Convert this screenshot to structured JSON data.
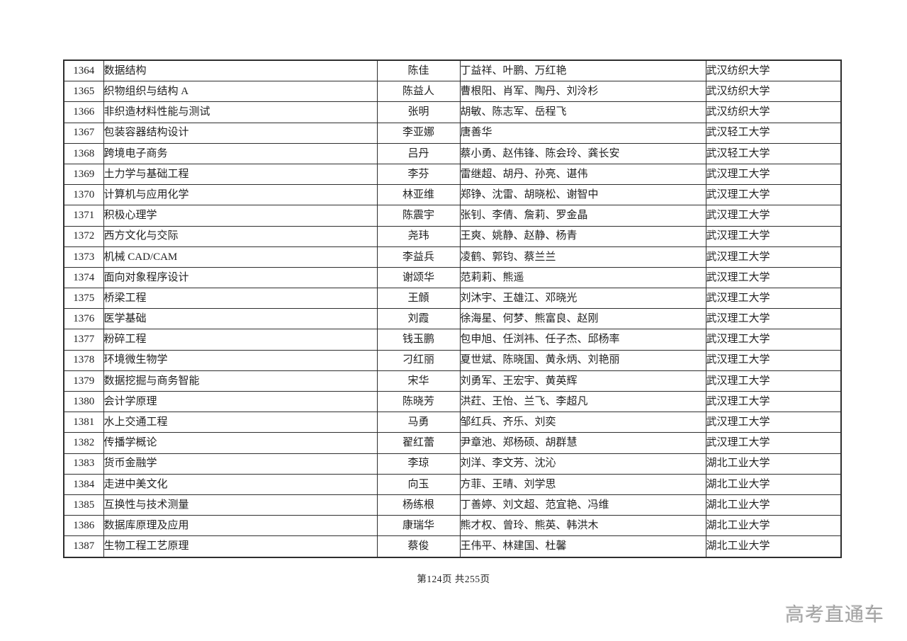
{
  "footer": {
    "text": "第124页 共255页"
  },
  "watermark": {
    "text": "高考直通车"
  },
  "table": {
    "rows": [
      {
        "no": "1364",
        "course": "数据结构",
        "leader": "陈佳",
        "members": "丁益祥、叶鹏、万红艳",
        "university": "武汉纺织大学"
      },
      {
        "no": "1365",
        "course": "织物组织与结构 A",
        "leader": "陈益人",
        "members": "曹根阳、肖军、陶丹、刘泠杉",
        "university": "武汉纺织大学"
      },
      {
        "no": "1366",
        "course": "非织造材料性能与测试",
        "leader": "张明",
        "members": "胡敏、陈志军、岳程飞",
        "university": "武汉纺织大学"
      },
      {
        "no": "1367",
        "course": "包装容器结构设计",
        "leader": "李亚娜",
        "members": "唐善华",
        "university": "武汉轻工大学"
      },
      {
        "no": "1368",
        "course": "跨境电子商务",
        "leader": "吕丹",
        "members": "蔡小勇、赵伟锋、陈会玲、龚长安",
        "university": "武汉轻工大学"
      },
      {
        "no": "1369",
        "course": "土力学与基础工程",
        "leader": "李芬",
        "members": "雷继超、胡丹、孙亮、谌伟",
        "university": "武汉理工大学"
      },
      {
        "no": "1370",
        "course": "计算机与应用化学",
        "leader": "林亚维",
        "members": "郑铮、沈雷、胡晓松、谢智中",
        "university": "武汉理工大学"
      },
      {
        "no": "1371",
        "course": "积极心理学",
        "leader": "陈震宇",
        "members": "张钊、李倩、詹莉、罗金晶",
        "university": "武汉理工大学"
      },
      {
        "no": "1372",
        "course": "西方文化与交际",
        "leader": "尧玮",
        "members": "王爽、姚静、赵静、杨青",
        "university": "武汉理工大学"
      },
      {
        "no": "1373",
        "course": "机械 CAD/CAM",
        "leader": "李益兵",
        "members": "凌鹤、郭钧、蔡兰兰",
        "university": "武汉理工大学"
      },
      {
        "no": "1374",
        "course": "面向对象程序设计",
        "leader": "谢颂华",
        "members": "范莉莉、熊遥",
        "university": "武汉理工大学"
      },
      {
        "no": "1375",
        "course": "桥梁工程",
        "leader": "王頠",
        "members": "刘沐宇、王雄江、邓晓光",
        "university": "武汉理工大学"
      },
      {
        "no": "1376",
        "course": "医学基础",
        "leader": "刘霞",
        "members": "徐海星、何梦、熊富良、赵刚",
        "university": "武汉理工大学"
      },
      {
        "no": "1377",
        "course": "粉碎工程",
        "leader": "钱玉鹏",
        "members": "包申旭、任浏祎、任子杰、邱杨率",
        "university": "武汉理工大学"
      },
      {
        "no": "1378",
        "course": "环境微生物学",
        "leader": "刁红丽",
        "members": "夏世斌、陈晓国、黄永炳、刘艳丽",
        "university": "武汉理工大学"
      },
      {
        "no": "1379",
        "course": "数据挖掘与商务智能",
        "leader": "宋华",
        "members": "刘勇军、王宏宇、黄英辉",
        "university": "武汉理工大学"
      },
      {
        "no": "1380",
        "course": "会计学原理",
        "leader": "陈晓芳",
        "members": "洪荭、王怡、兰飞、李超凡",
        "university": "武汉理工大学"
      },
      {
        "no": "1381",
        "course": "水上交通工程",
        "leader": "马勇",
        "members": "邹红兵、齐乐、刘奕",
        "university": "武汉理工大学"
      },
      {
        "no": "1382",
        "course": "传播学概论",
        "leader": "翟红蕾",
        "members": "尹章池、郑杨硕、胡群慧",
        "university": "武汉理工大学"
      },
      {
        "no": "1383",
        "course": "货币金融学",
        "leader": "李琼",
        "members": "刘洋、李文芳、沈沁",
        "university": "湖北工业大学"
      },
      {
        "no": "1384",
        "course": "走进中美文化",
        "leader": "向玉",
        "members": "方菲、王晴、刘学思",
        "university": "湖北工业大学"
      },
      {
        "no": "1385",
        "course": "互换性与技术测量",
        "leader": "杨练根",
        "members": "丁善婷、刘文超、范宜艳、冯维",
        "university": "湖北工业大学"
      },
      {
        "no": "1386",
        "course": "数据库原理及应用",
        "leader": "康瑞华",
        "members": "熊才权、曾玲、熊英、韩洪木",
        "university": "湖北工业大学"
      },
      {
        "no": "1387",
        "course": "生物工程工艺原理",
        "leader": "蔡俊",
        "members": "王伟平、林建国、杜馨",
        "university": "湖北工业大学"
      }
    ]
  }
}
